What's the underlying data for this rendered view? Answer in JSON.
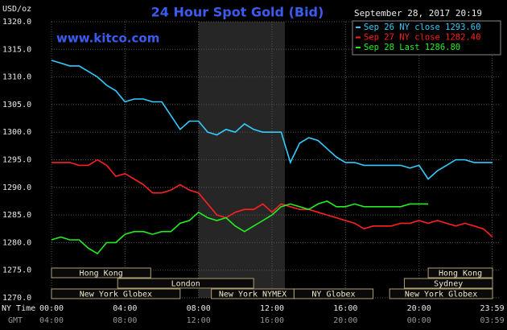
{
  "chart_data": {
    "type": "line",
    "title": "24 Hour Spot Gold (Bid)",
    "subtitle": "www.kitco.com",
    "timestamp": "September 28, 2017 20:19",
    "y_unit": "USD/oz",
    "x_label": "NY Time",
    "x2_label": "GMT",
    "grid": true,
    "legend": "top-right",
    "x": [
      0,
      0.5,
      1,
      1.5,
      2,
      2.5,
      3,
      3.5,
      4,
      4.5,
      5,
      5.5,
      6,
      6.5,
      7,
      7.5,
      8,
      8.5,
      9,
      9.5,
      10,
      10.5,
      11,
      11.5,
      12,
      12.5,
      13,
      13.5,
      14,
      14.5,
      15,
      15.5,
      16,
      16.5,
      17,
      17.5,
      18,
      18.5,
      19,
      19.5,
      20,
      20.5,
      21,
      21.5,
      22,
      22.5,
      23,
      23.5,
      24
    ],
    "series": [
      {
        "name": "Sep 26 NY close 1293.60",
        "color": "#33ccff",
        "values": [
          1313,
          1312.5,
          1312,
          1312,
          1311,
          1310,
          1308.5,
          1307.5,
          1305.5,
          1306,
          1306,
          1305.5,
          1305.5,
          1303,
          1300.5,
          1302,
          1302,
          1300,
          1299.5,
          1300.5,
          1300,
          1301.5,
          1300.5,
          1300,
          1300,
          1300,
          1294.5,
          1298,
          1299,
          1298.5,
          1297,
          1295.5,
          1294.5,
          1294.5,
          1294,
          1294,
          1294,
          1294,
          1294,
          1293.5,
          1294,
          1291.5,
          1293,
          1294,
          1295,
          1295,
          1294.5,
          1294.5,
          1294.5
        ]
      },
      {
        "name": "Sep 27 NY close 1282.40",
        "color": "#ff2020",
        "values": [
          1294.5,
          1294.5,
          1294.5,
          1294,
          1294,
          1295,
          1294,
          1292,
          1292.5,
          1291.5,
          1290.5,
          1289,
          1289,
          1289.5,
          1290.5,
          1289.5,
          1289,
          1287,
          1285,
          1284.5,
          1285.5,
          1286,
          1286,
          1287,
          1285.5,
          1287,
          1286.5,
          1286,
          1286,
          1285.5,
          1285,
          1284.5,
          1284,
          1283.5,
          1282.5,
          1283,
          1283,
          1283,
          1283.5,
          1283.5,
          1284,
          1283.5,
          1284,
          1283.5,
          1283,
          1283.5,
          1283,
          1282.5,
          1281
        ]
      },
      {
        "name": "Sep 28 Last 1286.80",
        "color": "#22ee22",
        "values": [
          1280.5,
          1281,
          1280.5,
          1280.5,
          1279,
          1278,
          1280,
          1280,
          1281.5,
          1282,
          1282,
          1281.5,
          1282,
          1282,
          1283.5,
          1284,
          1285.5,
          1284.5,
          1284,
          1284.5,
          1283,
          1282,
          1283,
          1284,
          1285,
          1286.5,
          1287,
          1286.5,
          1286,
          1287,
          1287.5,
          1286.5,
          1286.5,
          1287,
          1286.5,
          1286.5,
          1286.5,
          1286.5,
          1286.5,
          1287,
          1287,
          1287,
          null,
          null,
          null,
          null,
          null,
          null,
          null
        ]
      }
    ],
    "xlim": [
      0,
      24
    ],
    "xticks": [
      {
        "value": 0,
        "label": "00:00"
      },
      {
        "value": 4,
        "label": "04:00"
      },
      {
        "value": 8,
        "label": "08:00"
      },
      {
        "value": 12,
        "label": "12:00"
      },
      {
        "value": 16,
        "label": "16:00"
      },
      {
        "value": 20,
        "label": "20:00"
      },
      {
        "value": 23.98,
        "label": "23:59"
      }
    ],
    "x2ticks": [
      {
        "value": 0,
        "label": "04:00"
      },
      {
        "value": 4,
        "label": "08:00"
      },
      {
        "value": 8,
        "label": "12:00"
      },
      {
        "value": 12,
        "label": "16:00"
      },
      {
        "value": 16,
        "label": "20:00"
      },
      {
        "value": 20,
        "label": "00:00"
      },
      {
        "value": 23.98,
        "label": "03:59"
      }
    ],
    "ylim": [
      1270,
      1320
    ],
    "yticks": [
      {
        "value": 1270,
        "label": "1270.0"
      },
      {
        "value": 1275,
        "label": "1275.0"
      },
      {
        "value": 1280,
        "label": "1280.0"
      },
      {
        "value": 1285,
        "label": "1285.0"
      },
      {
        "value": 1290,
        "label": "1290.0"
      },
      {
        "value": 1295,
        "label": "1295.0"
      },
      {
        "value": 1300,
        "label": "1300.0"
      },
      {
        "value": 1305,
        "label": "1305.0"
      },
      {
        "value": 1310,
        "label": "1310.0"
      },
      {
        "value": 1315,
        "label": "1315.0"
      },
      {
        "value": 1320,
        "label": "1320.0"
      }
    ],
    "sessions": [
      "Hong Kong",
      "London",
      "New York Globex",
      "New York NYMEX",
      "NY Globex",
      "Sydney",
      "Hong Kong",
      "New York Globex"
    ]
  }
}
